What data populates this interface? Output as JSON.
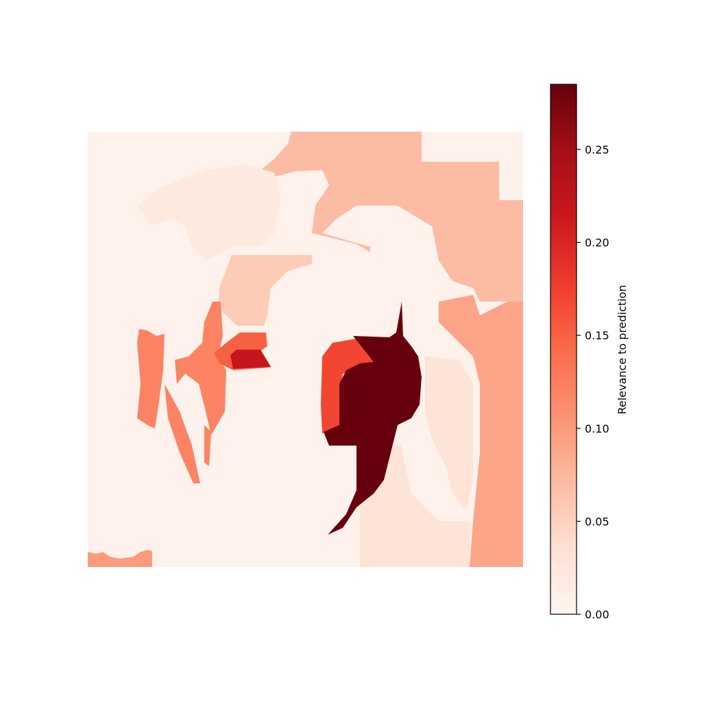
{
  "chart_data": {
    "type": "heatmap",
    "title": "",
    "xlabel": "",
    "ylabel": "",
    "axes_visible": false,
    "colormap": "Reds",
    "colormap_stops": [
      "#fff5f0",
      "#fee0d2",
      "#fcbba1",
      "#fc9272",
      "#fb6a4a",
      "#ef3b2c",
      "#cb181d",
      "#a50f15",
      "#67000d"
    ],
    "colorbar": {
      "label": "Relevance to prediction",
      "range": [
        0.0,
        0.285
      ],
      "ticks": [
        0.0,
        0.05,
        0.1,
        0.15,
        0.2,
        0.25
      ],
      "tick_labels": [
        "0.00",
        "0.05",
        "0.10",
        "0.15",
        "0.20",
        "0.25"
      ],
      "position": "right"
    },
    "image": {
      "background_value": 0.005,
      "regions": [
        {
          "name": "top-right hair band",
          "value": 0.07
        },
        {
          "name": "upper-left hair",
          "value": 0.02
        },
        {
          "name": "forehead band",
          "value": 0.055
        },
        {
          "name": "right side strip",
          "value": 0.09
        },
        {
          "name": "right cheek",
          "value": 0.03
        },
        {
          "name": "left edge strands",
          "value": 0.12
        },
        {
          "name": "left eye surround",
          "value": 0.15
        },
        {
          "name": "left eye core",
          "value": 0.22
        },
        {
          "name": "nose edge",
          "value": 0.17
        },
        {
          "name": "nose core",
          "value": 0.285
        },
        {
          "name": "bottom-left corner",
          "value": 0.1
        },
        {
          "name": "lower-right neck",
          "value": 0.03
        }
      ]
    }
  }
}
